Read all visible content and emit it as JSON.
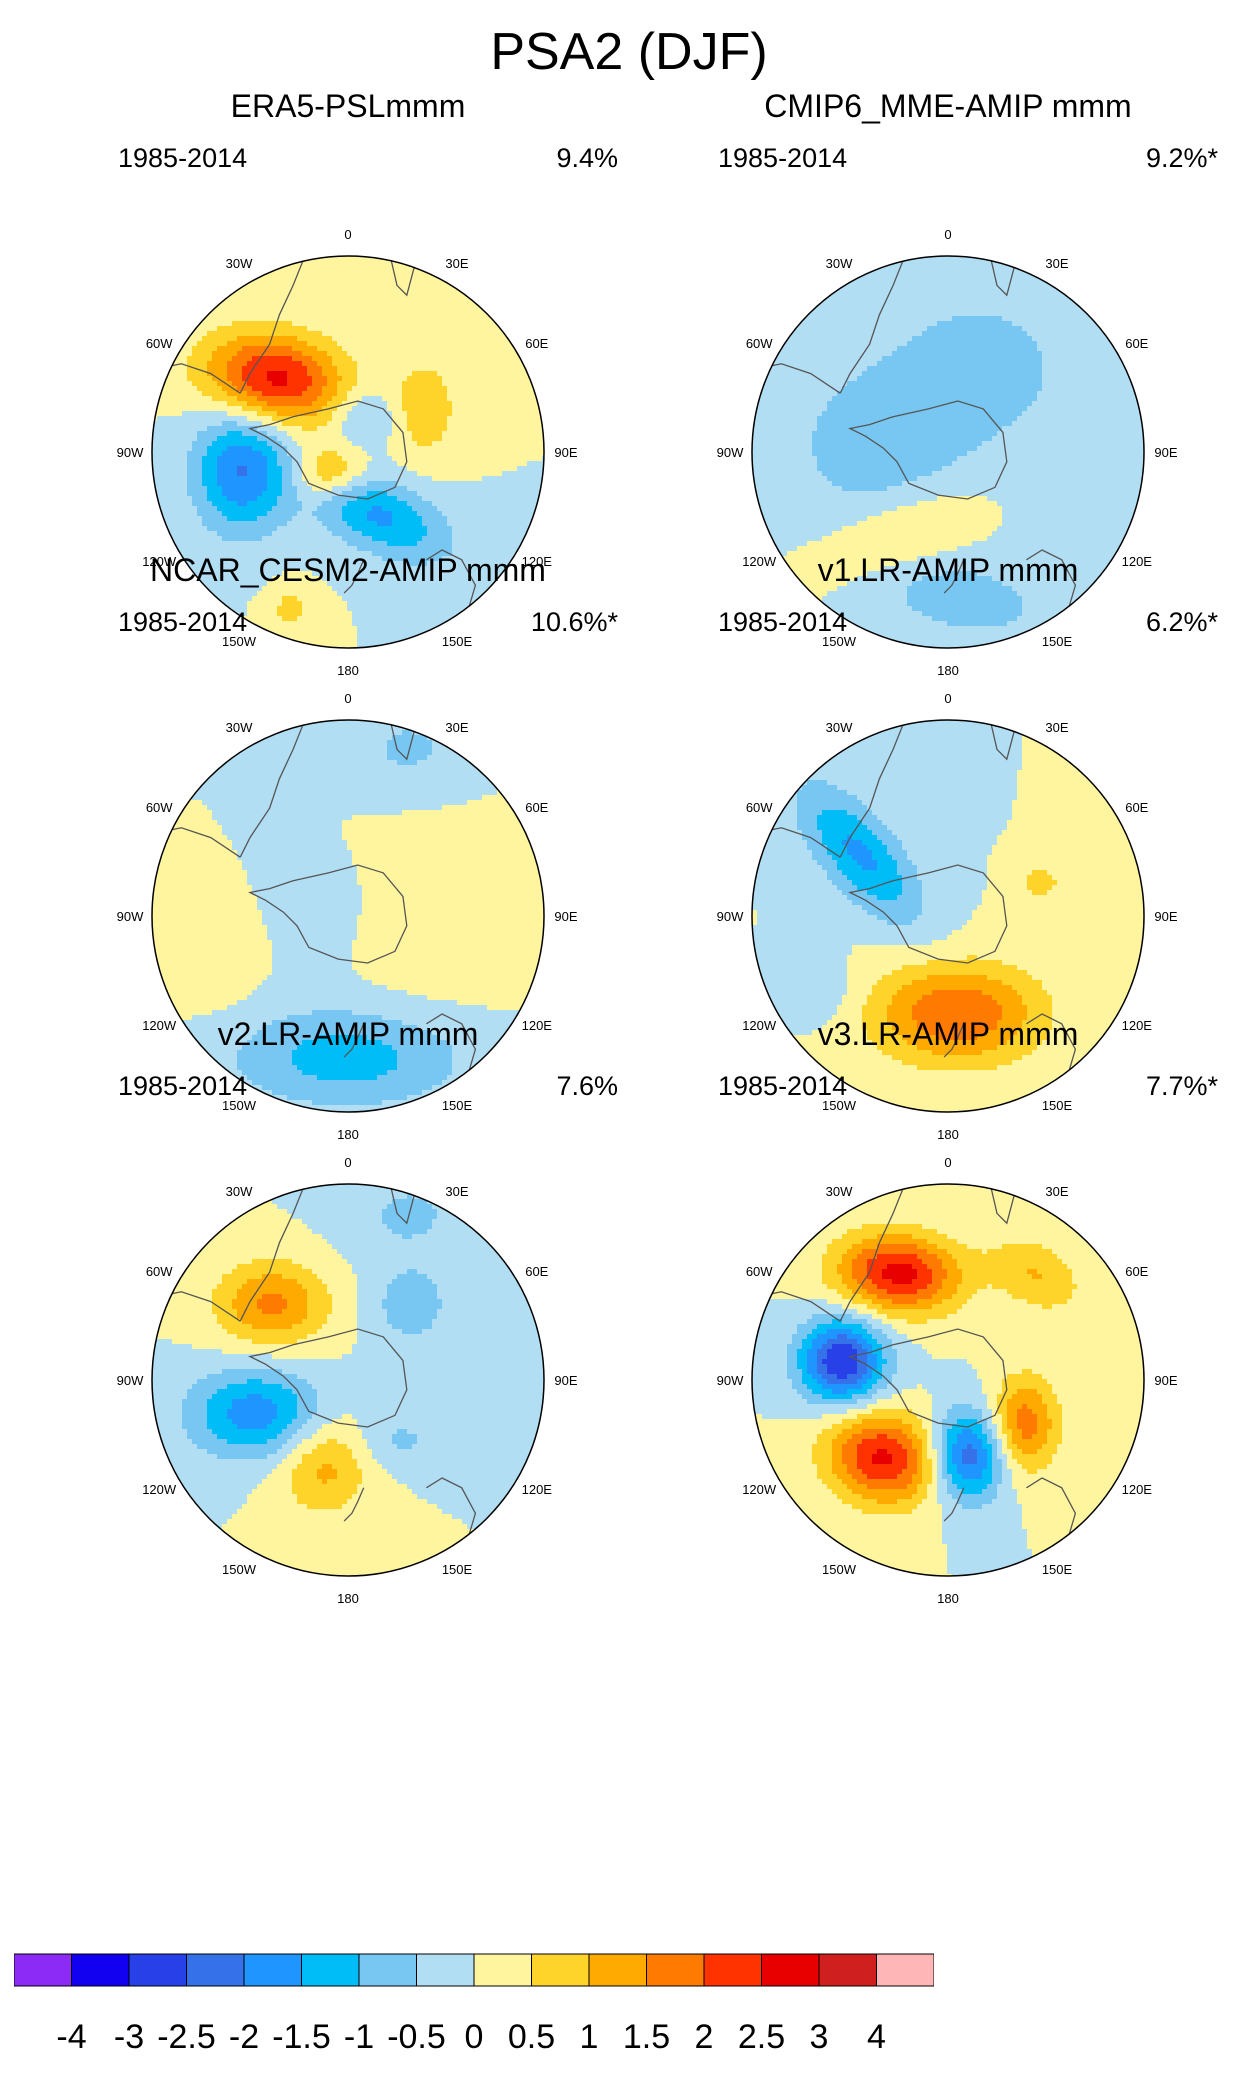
{
  "title": "PSA2 (DJF)",
  "panels": [
    {
      "title": "ERA5-PSLmmm",
      "period": "1985-2014",
      "percent": "9.4%",
      "blobs": [
        {
          "lon": -45,
          "r": 0.53,
          "v": 2.7,
          "sa": 0.25,
          "sb": 0.16,
          "rot": 10
        },
        {
          "lon": -100,
          "r": 0.55,
          "v": -2.0,
          "sa": 0.17,
          "sb": 0.22,
          "rot": 0
        },
        {
          "lon": 155,
          "r": 0.35,
          "v": -1.6,
          "sa": 0.28,
          "sb": 0.13,
          "rot": 25
        },
        {
          "lon": -140,
          "r": 0.15,
          "v": 1.4,
          "sa": 0.13,
          "sb": 0.1,
          "rot": 0
        },
        {
          "lon": 60,
          "r": 0.45,
          "v": 0.9,
          "sa": 0.12,
          "sb": 0.18,
          "rot": 0
        },
        {
          "lon": 25,
          "r": 0.2,
          "v": -0.8,
          "sa": 0.12,
          "sb": 0.1,
          "rot": 0
        },
        {
          "lon": -160,
          "r": 0.85,
          "v": 0.7,
          "sa": 0.08,
          "sb": 0.08,
          "rot": 0
        }
      ]
    },
    {
      "title": "CMIP6_MME-AMIP  mmm",
      "period": "1985-2014",
      "percent": "9.2%*",
      "blobs": [
        {
          "lon": 20,
          "r": 0.45,
          "v": -0.6,
          "sa": 0.55,
          "sb": 0.45,
          "rot": 0
        },
        {
          "lon": -155,
          "r": 0.45,
          "v": 0.7,
          "sa": 0.3,
          "sb": 0.13,
          "rot": -20
        },
        {
          "lon": 175,
          "r": 0.75,
          "v": -0.8,
          "sa": 0.32,
          "sb": 0.14,
          "rot": 10
        },
        {
          "lon": -90,
          "r": 0.4,
          "v": -0.6,
          "sa": 0.3,
          "sb": 0.25,
          "rot": 0
        }
      ]
    },
    {
      "title": "NCAR_CESM2-AMIP  mmm",
      "period": "1985-2014",
      "percent": "10.6%*",
      "blobs": [
        {
          "lon": 180,
          "r": 0.72,
          "v": -1.3,
          "sa": 0.42,
          "sb": 0.18,
          "rot": 0
        },
        {
          "lon": 20,
          "r": 0.9,
          "v": -0.6,
          "sa": 0.25,
          "sb": 0.18,
          "rot": 0
        },
        {
          "lon": -75,
          "r": 0.15,
          "v": -0.4,
          "sa": 0.35,
          "sb": 0.28,
          "rot": 0
        },
        {
          "lon": 90,
          "r": 0.3,
          "v": 0.4,
          "sa": 0.4,
          "sb": 0.4,
          "rot": 0
        },
        {
          "lon": -100,
          "r": 0.7,
          "v": 0.5,
          "sa": 0.2,
          "sb": 0.25,
          "rot": 0
        }
      ]
    },
    {
      "title": "v1.LR-AMIP  mmm",
      "period": "1985-2014",
      "percent": "6.2%*",
      "blobs": [
        {
          "lon": 175,
          "r": 0.5,
          "v": 2.0,
          "sa": 0.3,
          "sb": 0.18,
          "rot": 0
        },
        {
          "lon": -55,
          "r": 0.55,
          "v": -1.6,
          "sa": 0.13,
          "sb": 0.3,
          "rot": -40
        },
        {
          "lon": 70,
          "r": 0.5,
          "v": 0.8,
          "sa": 0.08,
          "sb": 0.06,
          "rot": 0
        },
        {
          "lon": -120,
          "r": 0.75,
          "v": -0.5,
          "sa": 0.12,
          "sb": 0.12,
          "rot": 0
        }
      ]
    },
    {
      "title": "v2.LR-AMIP  mmm",
      "period": "1985-2014",
      "percent": "7.6%",
      "blobs": [
        {
          "lon": -45,
          "r": 0.55,
          "v": 1.6,
          "sa": 0.2,
          "sb": 0.15,
          "rot": 0
        },
        {
          "lon": -110,
          "r": 0.5,
          "v": -1.8,
          "sa": 0.24,
          "sb": 0.16,
          "rot": 0
        },
        {
          "lon": -165,
          "r": 0.45,
          "v": 1.2,
          "sa": 0.16,
          "sb": 0.18,
          "rot": 20
        },
        {
          "lon": 40,
          "r": 0.5,
          "v": -0.8,
          "sa": 0.15,
          "sb": 0.15,
          "rot": 0
        },
        {
          "lon": 140,
          "r": 0.4,
          "v": -0.6,
          "sa": 0.18,
          "sb": 0.1,
          "rot": 0
        },
        {
          "lon": 20,
          "r": 0.9,
          "v": -0.6,
          "sa": 0.22,
          "sb": 0.15,
          "rot": 0
        }
      ]
    },
    {
      "title": "v3.LR-AMIP  mmm",
      "period": "1985-2014",
      "percent": "7.7%*",
      "blobs": [
        {
          "lon": -25,
          "r": 0.6,
          "v": 2.7,
          "sa": 0.22,
          "sb": 0.14,
          "rot": 5
        },
        {
          "lon": 40,
          "r": 0.7,
          "v": 1.0,
          "sa": 0.18,
          "sb": 0.12,
          "rot": 30
        },
        {
          "lon": -80,
          "r": 0.55,
          "v": -3.0,
          "sa": 0.15,
          "sb": 0.15,
          "rot": 0
        },
        {
          "lon": -140,
          "r": 0.52,
          "v": 2.6,
          "sa": 0.2,
          "sb": 0.16,
          "rot": 15
        },
        {
          "lon": 165,
          "r": 0.4,
          "v": -2.4,
          "sa": 0.13,
          "sb": 0.16,
          "rot": 0
        },
        {
          "lon": 120,
          "r": 0.45,
          "v": 1.8,
          "sa": 0.12,
          "sb": 0.17,
          "rot": 0
        }
      ]
    }
  ],
  "lon_labels": [
    "0",
    "30E",
    "60E",
    "90E",
    "120E",
    "150E",
    "180",
    "150W",
    "120W",
    "90W",
    "60W",
    "30W"
  ],
  "colorbar": {
    "labels": [
      "-4",
      "-3",
      "-2.5",
      "-2",
      "-1.5",
      "-1",
      "-0.5",
      "0",
      "0.5",
      "1",
      "1.5",
      "2",
      "2.5",
      "3",
      "4"
    ],
    "colors": [
      "#8B2BF5",
      "#1200F0",
      "#2840E8",
      "#3572EA",
      "#1F96FF",
      "#00BCF7",
      "#78C6F2",
      "#B2DEF4",
      "#FFF59F",
      "#FFD42A",
      "#FFAA00",
      "#FF7A00",
      "#FF3300",
      "#E80000",
      "#D01F1F",
      "#FFB6B6"
    ]
  }
}
